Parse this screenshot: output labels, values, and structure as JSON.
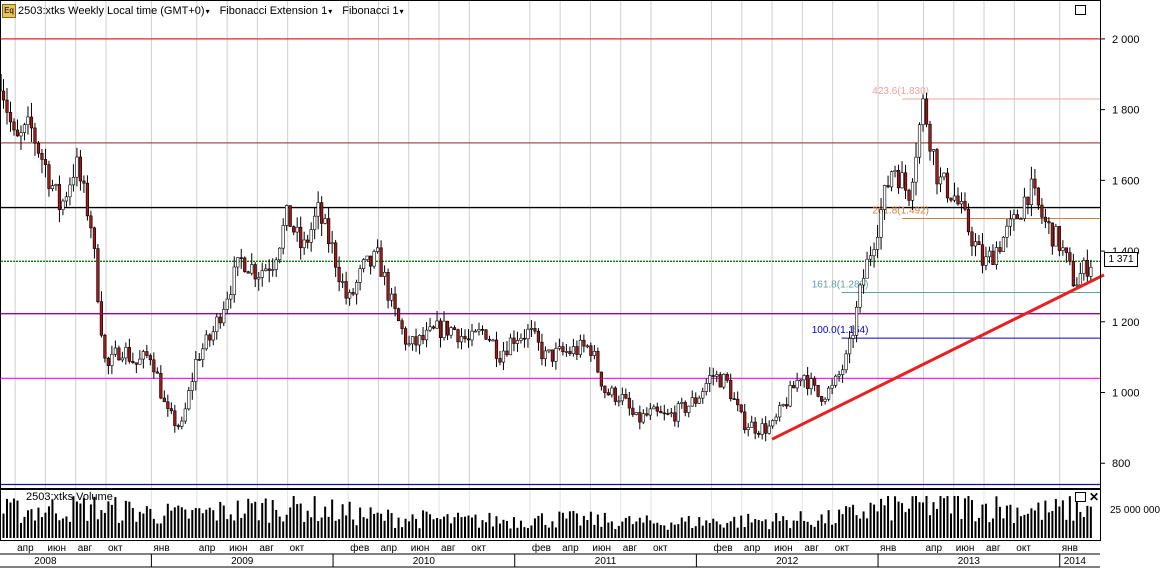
{
  "header": {
    "symbol_badge": "Eq",
    "instrument_label": "2503:xtks Weekly Local time (GMT+0)",
    "indicator_1": "Fibonacci Extension 1",
    "indicator_2": "Fibonacci 1"
  },
  "volume_panel": {
    "label": "2503:xtks Volume",
    "axis_label": "25 000 000"
  },
  "current_price_label": "1 371",
  "chart_data": {
    "type": "candlestick",
    "title": "2503:xtks Weekly Local time (GMT+0)",
    "y_ticks": [
      "800",
      "1 000",
      "1 200",
      "1 400",
      "1 600",
      "1 800",
      "2 000"
    ],
    "y_tick_values": [
      800,
      1000,
      1200,
      1400,
      1600,
      1800,
      2000
    ],
    "ylim": [
      730,
      2110
    ],
    "x_month_labels": [
      {
        "date": "2008-04",
        "label": "апр"
      },
      {
        "date": "2008-06",
        "label": "июн"
      },
      {
        "date": "2008-08",
        "label": "авг"
      },
      {
        "date": "2008-10",
        "label": "окт"
      },
      {
        "date": "2009-01",
        "label": "янв"
      },
      {
        "date": "2009-04",
        "label": "апр"
      },
      {
        "date": "2009-06",
        "label": "июн"
      },
      {
        "date": "2009-08",
        "label": "авг"
      },
      {
        "date": "2009-10",
        "label": "окт"
      },
      {
        "date": "2010-02",
        "label": "фев"
      },
      {
        "date": "2010-04",
        "label": "апр"
      },
      {
        "date": "2010-06",
        "label": "июн"
      },
      {
        "date": "2010-08",
        "label": "авг"
      },
      {
        "date": "2010-10",
        "label": "окт"
      },
      {
        "date": "2011-02",
        "label": "фев"
      },
      {
        "date": "2011-04",
        "label": "апр"
      },
      {
        "date": "2011-06",
        "label": "июн"
      },
      {
        "date": "2011-08",
        "label": "авг"
      },
      {
        "date": "2011-10",
        "label": "окт"
      },
      {
        "date": "2012-02",
        "label": "фев"
      },
      {
        "date": "2012-04",
        "label": "апр"
      },
      {
        "date": "2012-06",
        "label": "июн"
      },
      {
        "date": "2012-08",
        "label": "авг"
      },
      {
        "date": "2012-10",
        "label": "окт"
      },
      {
        "date": "2013-01",
        "label": "янв"
      },
      {
        "date": "2013-04",
        "label": "апр"
      },
      {
        "date": "2013-06",
        "label": "июн"
      },
      {
        "date": "2013-08",
        "label": "авг"
      },
      {
        "date": "2013-10",
        "label": "окт"
      },
      {
        "date": "2014-01",
        "label": "янв"
      }
    ],
    "x_year_labels": [
      {
        "date": "2008-06",
        "label": "2008"
      },
      {
        "date": "2009-07",
        "label": "2009"
      },
      {
        "date": "2010-07",
        "label": "2010"
      },
      {
        "date": "2011-07",
        "label": "2011"
      },
      {
        "date": "2012-07",
        "label": "2012"
      },
      {
        "date": "2013-07",
        "label": "2013"
      },
      {
        "date": "2014-02",
        "label": "2014"
      }
    ],
    "year_boundaries": [
      "2009-01",
      "2010-01",
      "2011-01",
      "2012-01",
      "2013-01",
      "2014-01"
    ],
    "x_range": [
      "2008-03",
      "2014-03"
    ],
    "price_keypoints": [
      {
        "date": "2008-03",
        "price": 1900
      },
      {
        "date": "2008-04",
        "price": 1700
      },
      {
        "date": "2008-05",
        "price": 1750
      },
      {
        "date": "2008-06",
        "price": 1640
      },
      {
        "date": "2008-07",
        "price": 1520
      },
      {
        "date": "2008-08",
        "price": 1650
      },
      {
        "date": "2008-09",
        "price": 1480
      },
      {
        "date": "2008-10",
        "price": 1060
      },
      {
        "date": "2008-11",
        "price": 1130
      },
      {
        "date": "2008-12",
        "price": 1080
      },
      {
        "date": "2009-01",
        "price": 1110
      },
      {
        "date": "2009-02",
        "price": 940
      },
      {
        "date": "2009-03",
        "price": 900
      },
      {
        "date": "2009-04",
        "price": 1100
      },
      {
        "date": "2009-05",
        "price": 1160
      },
      {
        "date": "2009-06",
        "price": 1280
      },
      {
        "date": "2009-07",
        "price": 1380
      },
      {
        "date": "2009-08",
        "price": 1340
      },
      {
        "date": "2009-09",
        "price": 1370
      },
      {
        "date": "2009-10",
        "price": 1500
      },
      {
        "date": "2009-11",
        "price": 1400
      },
      {
        "date": "2009-12",
        "price": 1510
      },
      {
        "date": "2010-01",
        "price": 1400
      },
      {
        "date": "2010-02",
        "price": 1250
      },
      {
        "date": "2010-03",
        "price": 1350
      },
      {
        "date": "2010-04",
        "price": 1380
      },
      {
        "date": "2010-05",
        "price": 1230
      },
      {
        "date": "2010-06",
        "price": 1130
      },
      {
        "date": "2010-07",
        "price": 1150
      },
      {
        "date": "2010-08",
        "price": 1180
      },
      {
        "date": "2010-09",
        "price": 1180
      },
      {
        "date": "2010-10",
        "price": 1140
      },
      {
        "date": "2010-11",
        "price": 1180
      },
      {
        "date": "2010-12",
        "price": 1110
      },
      {
        "date": "2011-01",
        "price": 1160
      },
      {
        "date": "2011-02",
        "price": 1170
      },
      {
        "date": "2011-03",
        "price": 1100
      },
      {
        "date": "2011-04",
        "price": 1110
      },
      {
        "date": "2011-05",
        "price": 1120
      },
      {
        "date": "2011-06",
        "price": 1130
      },
      {
        "date": "2011-07",
        "price": 1000
      },
      {
        "date": "2011-08",
        "price": 990
      },
      {
        "date": "2011-09",
        "price": 920
      },
      {
        "date": "2011-10",
        "price": 940
      },
      {
        "date": "2011-11",
        "price": 930
      },
      {
        "date": "2011-12",
        "price": 950
      },
      {
        "date": "2012-01",
        "price": 980
      },
      {
        "date": "2012-02",
        "price": 1050
      },
      {
        "date": "2012-03",
        "price": 1030
      },
      {
        "date": "2012-04",
        "price": 920
      },
      {
        "date": "2012-05",
        "price": 900
      },
      {
        "date": "2012-06",
        "price": 900
      },
      {
        "date": "2012-07",
        "price": 980
      },
      {
        "date": "2012-08",
        "price": 1060
      },
      {
        "date": "2012-09",
        "price": 990
      },
      {
        "date": "2012-10",
        "price": 1010
      },
      {
        "date": "2012-11",
        "price": 1100
      },
      {
        "date": "2012-12",
        "price": 1320
      },
      {
        "date": "2013-01",
        "price": 1480
      },
      {
        "date": "2013-02",
        "price": 1650
      },
      {
        "date": "2013-03",
        "price": 1560
      },
      {
        "date": "2013-04",
        "price": 1820
      },
      {
        "date": "2013-05",
        "price": 1600
      },
      {
        "date": "2013-06",
        "price": 1560
      },
      {
        "date": "2013-07",
        "price": 1460
      },
      {
        "date": "2013-08",
        "price": 1360
      },
      {
        "date": "2013-09",
        "price": 1420
      },
      {
        "date": "2013-10",
        "price": 1480
      },
      {
        "date": "2013-11",
        "price": 1580
      },
      {
        "date": "2013-12",
        "price": 1480
      },
      {
        "date": "2014-01",
        "price": 1420
      },
      {
        "date": "2014-02",
        "price": 1310
      },
      {
        "date": "2014-03",
        "price": 1371
      }
    ],
    "volume_level_pct": [
      {
        "date": "2008-03",
        "v": 70
      },
      {
        "date": "2008-09",
        "v": 80
      },
      {
        "date": "2009-03",
        "v": 60
      },
      {
        "date": "2009-10",
        "v": 85
      },
      {
        "date": "2010-04",
        "v": 55
      },
      {
        "date": "2010-10",
        "v": 45
      },
      {
        "date": "2011-04",
        "v": 50
      },
      {
        "date": "2011-10",
        "v": 40
      },
      {
        "date": "2012-04",
        "v": 45
      },
      {
        "date": "2012-10",
        "v": 50
      },
      {
        "date": "2013-01",
        "v": 80
      },
      {
        "date": "2013-06",
        "v": 90
      },
      {
        "date": "2013-12",
        "v": 70
      },
      {
        "date": "2014-03",
        "v": 80
      }
    ],
    "horizontal_lines": [
      {
        "price": 2000,
        "color": "#e82020"
      },
      {
        "price": 1706,
        "color": "#a05050"
      },
      {
        "price": 1523,
        "color": "#000000"
      },
      {
        "price": 1371,
        "color": "#0a7a0a",
        "style": "dotted"
      },
      {
        "price": 1223,
        "color": "#a000a0"
      },
      {
        "price": 1040,
        "color": "#ff20ff"
      },
      {
        "price": 740,
        "color": "#1010a0"
      }
    ],
    "fibonacci_levels": [
      {
        "label": "423.6(1.830)",
        "price": 1830,
        "color": "#f0a0a0",
        "start": "2013-02"
      },
      {
        "label": "261.8(1.492)",
        "price": 1492,
        "color": "#d08040",
        "start": "2013-02"
      },
      {
        "label": "161.8(1.283)",
        "price": 1283,
        "color": "#60a0a0",
        "start": "2012-10"
      },
      {
        "label": "100.0(1.154)",
        "price": 1154,
        "color": "#0000d0",
        "start": "2012-10"
      }
    ],
    "trendline": {
      "from": {
        "date": "2012-06",
        "price": 868
      },
      "to": {
        "date": "2014-03",
        "price": 1310
      },
      "color": "#e82020"
    },
    "current_price": 1371
  }
}
